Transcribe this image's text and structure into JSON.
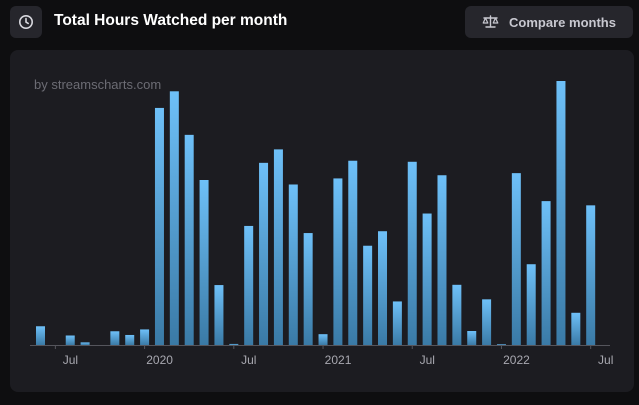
{
  "header": {
    "title": "Total Hours Watched per month",
    "history_icon": "clock-icon",
    "compare_icon": "scale-icon",
    "compare_label": "Compare months"
  },
  "watermark": "by streamscharts.com",
  "colors": {
    "bar_top": "#6ec0f8",
    "bar_bottom": "#3a7aa6",
    "card_bg": "#1c1c21",
    "page_bg": "#0e0e10"
  },
  "chart_data": {
    "type": "bar",
    "title": "Total Hours Watched per month",
    "xlabel": "",
    "ylabel": "",
    "ylim": [
      0,
      100
    ],
    "y_axis_labels_shown": false,
    "grid": false,
    "tick_labels": [
      "Jul",
      "2020",
      "Jul",
      "2021",
      "Jul",
      "2022",
      "Jul"
    ],
    "tick_positions": [
      "2019-07",
      "2020-01",
      "2020-07",
      "2021-01",
      "2021-07",
      "2022-01",
      "2022-07"
    ],
    "x": [
      "2019-06",
      "2019-07",
      "2019-08",
      "2019-09",
      "2019-10",
      "2019-11",
      "2019-12",
      "2020-01",
      "2020-02",
      "2020-03",
      "2020-04",
      "2020-05",
      "2020-06",
      "2020-07",
      "2020-08",
      "2020-09",
      "2020-10",
      "2020-11",
      "2020-12",
      "2021-01",
      "2021-02",
      "2021-03",
      "2021-04",
      "2021-05",
      "2021-06",
      "2021-07",
      "2021-08",
      "2021-09",
      "2021-10",
      "2021-11",
      "2021-12",
      "2022-01",
      "2022-02",
      "2022-03",
      "2022-04",
      "2022-05",
      "2022-06",
      "2022-07"
    ],
    "values": [
      7.1,
      0,
      3.6,
      1.0,
      0,
      5.2,
      3.8,
      5.9,
      89.8,
      96.1,
      79.6,
      62.5,
      22.7,
      0.4,
      45.1,
      69.0,
      74.1,
      60.8,
      42.4,
      4.1,
      63.1,
      69.8,
      37.6,
      43.1,
      16.5,
      69.4,
      49.8,
      64.3,
      22.8,
      5.3,
      17.3,
      0.3,
      65.1,
      30.6,
      54.5,
      100,
      12.2,
      52.9
    ]
  }
}
